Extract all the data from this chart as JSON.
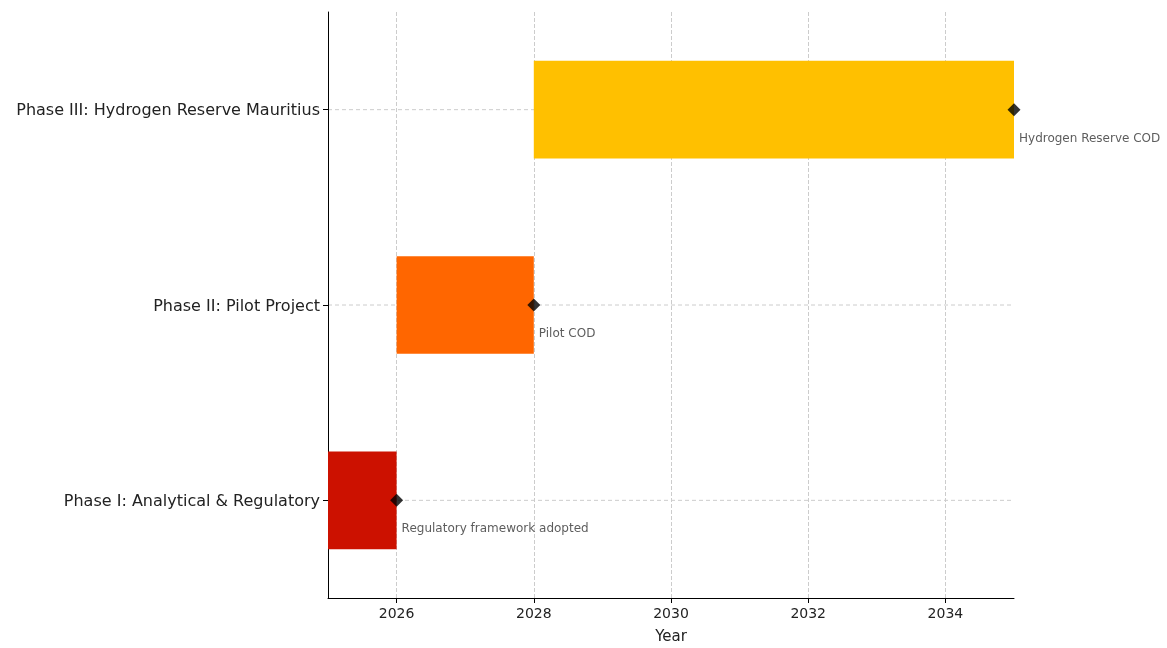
{
  "chart_data": {
    "type": "bar",
    "orientation": "horizontal",
    "xlabel": "Year",
    "categories": [
      "Phase III: Hydrogen Reserve Mauritius",
      "Phase II: Pilot Project",
      "Phase I: Analytical & Regulatory"
    ],
    "values": [
      7,
      2,
      1
    ],
    "base": [
      2028,
      2026,
      2025
    ],
    "colors": [
      "#ffc000",
      "#ff6600",
      "#cc1100"
    ],
    "series": [
      {
        "type": "scatter",
        "x": [
          "Phase III: Hydrogen Reserve Mauritius",
          "Phase II: Pilot Project",
          "Phase I: Analytical & Regulatory"
        ],
        "values": [
          2035,
          2028,
          2026
        ],
        "color": "#000000",
        "marker": "diamond"
      }
    ],
    "annotations": [
      {
        "text": "Hydrogen Reserve COD",
        "x": 2035,
        "y": "Phase III: Hydrogen Reserve Mauritius"
      },
      {
        "text": "Pilot COD",
        "x": 2028,
        "y": "Phase II: Pilot Project"
      },
      {
        "text": "Regulatory framework adopted",
        "x": 2026,
        "y": "Phase I: Analytical & Regulatory"
      }
    ],
    "xlim": [
      2025,
      2035
    ],
    "xticks": [
      2026,
      2028,
      2030,
      2032,
      2034
    ],
    "grid": true
  }
}
